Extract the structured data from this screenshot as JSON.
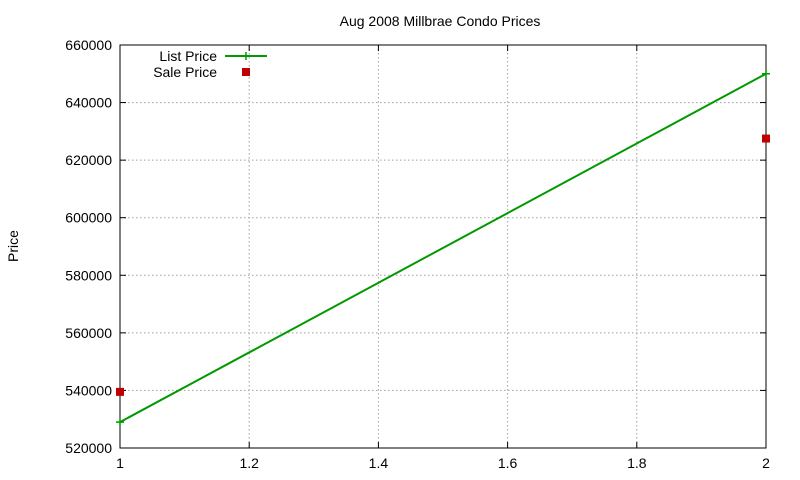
{
  "chart_data": {
    "type": "line",
    "title": "Aug 2008 Millbrae Condo Prices",
    "xlabel": "",
    "ylabel": "Price",
    "xlim": [
      1,
      2
    ],
    "ylim": [
      520000,
      660000
    ],
    "x_ticks": [
      1,
      1.2,
      1.4,
      1.6,
      1.8,
      2
    ],
    "x_tick_labels": [
      "1",
      "1.2",
      "1.4",
      "1.6",
      "1.8",
      "2"
    ],
    "y_ticks": [
      520000,
      540000,
      560000,
      580000,
      600000,
      620000,
      640000,
      660000
    ],
    "y_tick_labels": [
      "520000",
      "540000",
      "560000",
      "580000",
      "600000",
      "620000",
      "640000",
      "660000"
    ],
    "grid": true,
    "legend_position": "top-left",
    "series": [
      {
        "name": "List Price",
        "style": "line with plus markers",
        "color": "#009900",
        "x": [
          1,
          2
        ],
        "y": [
          529000,
          650000
        ]
      },
      {
        "name": "Sale Price",
        "style": "square markers",
        "color": "#c00000",
        "x": [
          1,
          2
        ],
        "y": [
          539500,
          627500
        ]
      }
    ]
  }
}
